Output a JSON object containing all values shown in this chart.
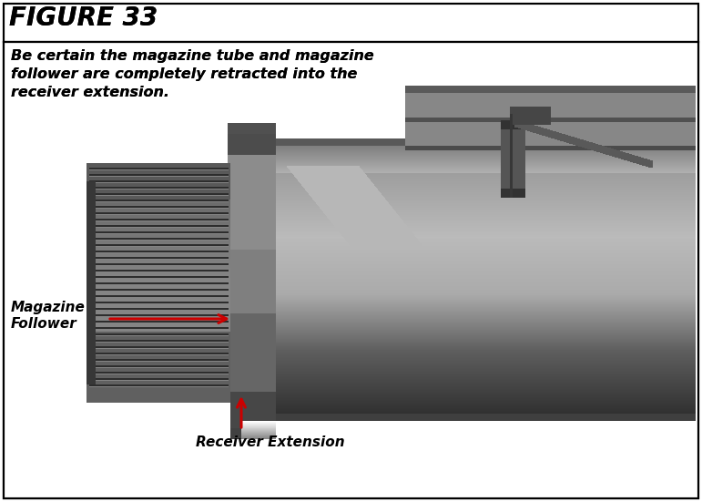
{
  "figure_title": "FIGURE 33",
  "instruction_text": "Be certain the magazine tube and magazine\nfollower are completely retracted into the\nreceiver extension.",
  "label1_line1": "Magazine",
  "label1_line2": "Follower",
  "label2_text": "Receiver Extension",
  "outer_border_color": "#000000",
  "background_color": "#ffffff",
  "title_color": "#000000",
  "label_color": "#000000",
  "arrow_color": "#cc0000",
  "title_fontsize": 20,
  "instruction_fontsize": 11.5,
  "label_fontsize": 11,
  "fig_width": 7.71,
  "fig_height": 5.51,
  "dpi": 100
}
